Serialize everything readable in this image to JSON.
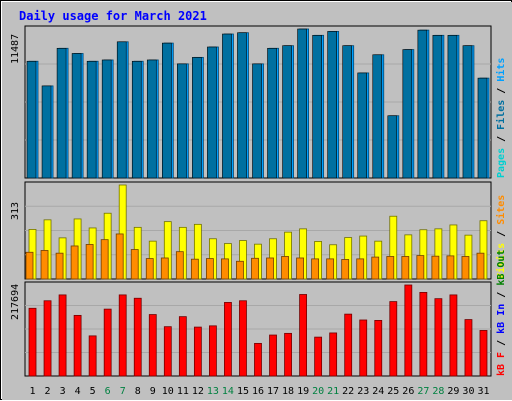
{
  "chart_data": [
    {
      "type": "bar",
      "title": "Daily usage for March 2021",
      "categories": [
        "1",
        "2",
        "3",
        "4",
        "5",
        "6",
        "7",
        "8",
        "9",
        "10",
        "11",
        "12",
        "13",
        "14",
        "15",
        "16",
        "17",
        "18",
        "19",
        "20",
        "21",
        "22",
        "23",
        "24",
        "25",
        "26",
        "27",
        "28",
        "29",
        "30",
        "31"
      ],
      "weekend_days": [
        "6",
        "7",
        "13",
        "14",
        "20",
        "21",
        "27",
        "28"
      ],
      "panels": [
        {
          "name": "requests",
          "ymax_label": "11487",
          "ymax": 11487,
          "right_label": [
            "Pages",
            "/",
            "Files",
            "/",
            "Hits"
          ],
          "series": [
            {
              "name": "Hits",
              "color": "#00a0ff",
              "values": [
                9000,
                7100,
                10000,
                9600,
                9000,
                9100,
                10500,
                9000,
                9100,
                10400,
                8800,
                9300,
                10100,
                11100,
                11200,
                8800,
                10000,
                10200,
                11487,
                11000,
                11300,
                10200,
                8100,
                9500,
                4800,
                9900,
                11400,
                11000,
                11000,
                10200,
                7700
              ]
            },
            {
              "name": "Files",
              "color": "#0070a0",
              "values": [
                9000,
                7100,
                10000,
                9600,
                9000,
                9100,
                10500,
                9000,
                9100,
                10400,
                8800,
                9300,
                10100,
                11100,
                11200,
                8800,
                10000,
                10200,
                11487,
                11000,
                11300,
                10200,
                8100,
                9500,
                4800,
                9900,
                11400,
                11000,
                11000,
                10200,
                7700
              ]
            }
          ]
        },
        {
          "name": "visitors",
          "ymax_label": "313",
          "ymax": 313,
          "right_label": [
            "Visits",
            "/",
            "Sites"
          ],
          "series": [
            {
              "name": "Visits",
              "color": "#ffff00",
              "values": [
                165,
                197,
                137,
                200,
                170,
                219,
                313,
                172,
                126,
                191,
                172,
                182,
                134,
                118,
                128,
                116,
                134,
                156,
                167,
                125,
                114,
                138,
                143,
                126,
                209,
                147,
                164,
                167,
                180,
                146,
                194
              ]
            },
            {
              "name": "Sites",
              "color": "#ff8c00",
              "values": [
                89,
                95,
                86,
                110,
                115,
                131,
                150,
                98,
                68,
                70,
                91,
                66,
                68,
                67,
                59,
                69,
                70,
                75,
                70,
                67,
                67,
                65,
                67,
                73,
                75,
                75,
                78,
                76,
                77,
                75,
                86
              ]
            }
          ]
        },
        {
          "name": "traffic",
          "ymax_label": "217694",
          "ymax": 217694,
          "right_label": [
            "kB F",
            "/",
            "kB In",
            "/",
            "kB Out"
          ],
          "series": [
            {
              "name": "kB F",
              "color": "#ff0000",
              "values": [
                162000,
                180000,
                194000,
                145000,
                96000,
                160000,
                194000,
                186000,
                147000,
                118000,
                142000,
                117000,
                120000,
                176000,
                180000,
                78000,
                98000,
                102000,
                195000,
                93000,
                103000,
                148000,
                134000,
                133000,
                178000,
                217694,
                200000,
                185000,
                194000,
                135000,
                109000
              ]
            }
          ]
        }
      ]
    }
  ]
}
